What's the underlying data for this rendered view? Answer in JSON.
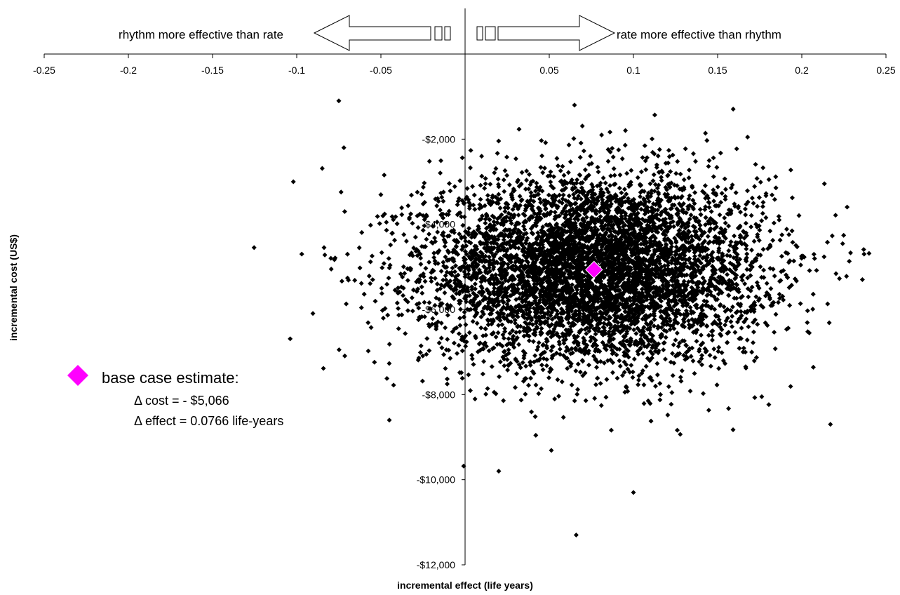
{
  "chart_data": {
    "type": "scatter",
    "xlabel": "incremental effect (life years)",
    "ylabel": "incremental cost (US$)",
    "xlim": [
      -0.25,
      0.25
    ],
    "ylim": [
      -12000,
      0
    ],
    "x_ticks": [
      -0.25,
      -0.2,
      -0.15,
      -0.1,
      -0.05,
      0.05,
      0.1,
      0.15,
      0.2,
      0.25
    ],
    "x_tick_labels": [
      "-0.25",
      "-0.2",
      "-0.15",
      "-0.1",
      "-0.05",
      "0.05",
      "0.1",
      "0.15",
      "0.2",
      "0.25"
    ],
    "y_ticks": [
      -2000,
      -4000,
      -6000,
      -8000,
      -10000,
      -12000
    ],
    "y_tick_labels": [
      "-$2,000",
      "-$4,000",
      "-$6,000",
      "-$8,000",
      "-$10,000",
      "-$12,000"
    ],
    "x_axis_position": "top",
    "grid": false,
    "marker_color": "#000000",
    "base_case_color": "#ff00ff",
    "series": [
      {
        "marker": "diamond",
        "distribution": {
          "x_mean": 0.0766,
          "x_sd": 0.05,
          "y_mean": -5066,
          "y_sd": 1100,
          "n": 6000
        },
        "outliers": [
          {
            "x": -0.075,
            "y": -1100
          },
          {
            "x": -0.072,
            "y": -2200
          },
          {
            "x": -0.102,
            "y": -3000
          },
          {
            "x": -0.097,
            "y": -4700
          },
          {
            "x": -0.045,
            "y": -8600
          },
          {
            "x": 0.02,
            "y": -9800
          },
          {
            "x": 0.1,
            "y": -10300
          },
          {
            "x": 0.066,
            "y": -11300
          },
          {
            "x": 0.065,
            "y": -1200
          },
          {
            "x": 0.217,
            "y": -8700
          },
          {
            "x": 0.237,
            "y": -4700
          },
          {
            "x": 0.236,
            "y": -5300
          }
        ]
      }
    ],
    "base_case": {
      "x": 0.0766,
      "y": -5066
    },
    "annotations": {
      "left_arrow": "rhythm more effective than rate",
      "right_arrow": "rate more effective than rhythm",
      "legend_title": "base case estimate:",
      "legend_line1": "Δ cost = - $5,066",
      "legend_line2": "Δ effect = 0.0766 life-years"
    }
  }
}
